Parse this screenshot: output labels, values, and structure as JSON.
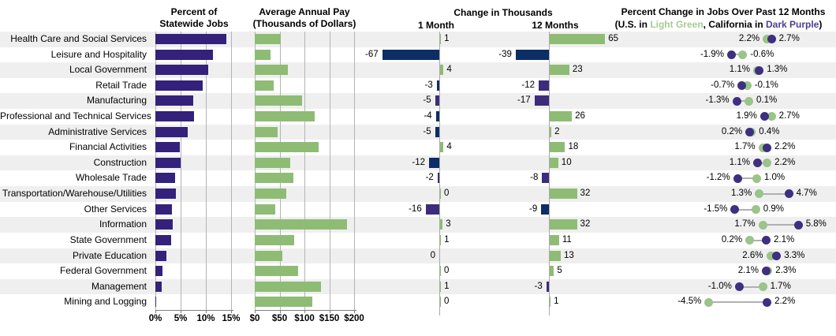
{
  "headers": {
    "panel1_line1": "Percent of",
    "panel1_line2": "Statewide Jobs",
    "panel2_line1": "Average Annual Pay",
    "panel2_line2": "(Thousands of Dollars)",
    "panel3_title": "Change in Thousands",
    "panel3_col1": "1 Month",
    "panel3_col2": "12 Months",
    "panel4_title": "Percent Change in Jobs Over Past 12 Months",
    "panel4_subtitle_prefix": "(U.S. in ",
    "panel4_subtitle_green": "Light Green",
    "panel4_subtitle_mid": ", California in ",
    "panel4_subtitle_purple": "Dark Purple",
    "panel4_subtitle_suffix": ")"
  },
  "colors": {
    "indigo_bar": "#33217B",
    "green_bar": "#8FBC75",
    "navy_bar": "#0C2D66",
    "purple_bar": "#3D2B7C",
    "us_dot": "#9AC489",
    "ca_dot": "#3E2F80",
    "legend_green_text": "#A5CB93",
    "legend_purple_text": "#4B3F94",
    "stripe": "#EFEFEF",
    "gridline": "#B3B3B3",
    "connector": "#B0B0B0"
  },
  "chart_data": [
    {
      "type": "bar",
      "title": "Percent of Statewide Jobs",
      "xlim": [
        0,
        15
      ],
      "tick_labels": [
        "0%",
        "5%",
        "10%",
        "15%"
      ],
      "categories": [
        "Health Care and Social Services",
        "Leisure and Hospitality",
        "Local Government",
        "Retail Trade",
        "Manufacturing",
        "Professional and Technical Services",
        "Administrative Services",
        "Financial Activities",
        "Construction",
        "Wholesale Trade",
        "Transportation/Warehouse/Utilities",
        "Other Services",
        "Information",
        "State Government",
        "Private Education",
        "Federal Government",
        "Management",
        "Mining and Logging"
      ],
      "values": [
        14.0,
        11.4,
        10.4,
        9.4,
        7.5,
        7.7,
        6.4,
        4.8,
        5.0,
        3.9,
        4.1,
        3.3,
        3.4,
        3.2,
        2.2,
        1.4,
        1.3,
        0.1
      ]
    },
    {
      "type": "bar",
      "title": "Average Annual Pay (Thousands of Dollars)",
      "xlim": [
        0,
        200
      ],
      "tick_labels": [
        "$0",
        "$50",
        "$100",
        "$150",
        "$200"
      ],
      "values": [
        53,
        32,
        66,
        38,
        96,
        121,
        46,
        128,
        71,
        78,
        64,
        42,
        186,
        80,
        56,
        87,
        134,
        116
      ]
    },
    {
      "type": "bar",
      "title": "Change in Thousands — 1 Month",
      "values": [
        1,
        -67,
        4,
        -3,
        -5,
        -4,
        -5,
        4,
        -12,
        -2,
        0,
        -16,
        3,
        1,
        0,
        0,
        1,
        0
      ],
      "bar_colors": [
        "green",
        "navy",
        "green",
        "navy",
        "purple",
        "navy",
        "navy",
        "green",
        "navy",
        "purple",
        "green",
        "purple",
        "green",
        "green",
        "none",
        "green",
        "green",
        "green"
      ],
      "label_sides": [
        "right",
        "left",
        "right",
        "left",
        "left",
        "left",
        "left",
        "right",
        "left",
        "left",
        "right",
        "left",
        "right",
        "right",
        "left",
        "right",
        "right",
        "right"
      ]
    },
    {
      "type": "bar",
      "title": "Change in Thousands — 12 Months",
      "values": [
        65,
        -39,
        23,
        -12,
        -17,
        26,
        2,
        18,
        10,
        -8,
        32,
        -9,
        32,
        11,
        13,
        5,
        -3,
        1
      ],
      "bar_colors": [
        "green",
        "navy",
        "green",
        "purple",
        "purple",
        "green",
        "green",
        "green",
        "green",
        "purple",
        "green",
        "navy",
        "green",
        "green",
        "green",
        "green",
        "purple",
        "green"
      ]
    },
    {
      "type": "scatter",
      "title": "Percent Change in Jobs Over Past 12 Months",
      "legend": [
        "U.S. in Light Green",
        "California in Dark Purple"
      ],
      "series": [
        {
          "name": "U.S.",
          "color_key": "us_dot",
          "values": [
            2.2,
            -0.6,
            1.1,
            -0.1,
            0.1,
            2.7,
            0.4,
            1.7,
            2.2,
            1.0,
            1.3,
            0.9,
            1.7,
            0.2,
            2.6,
            2.3,
            1.7,
            -4.5
          ]
        },
        {
          "name": "California",
          "color_key": "ca_dot",
          "values": [
            2.7,
            -1.9,
            1.3,
            -0.7,
            -1.3,
            1.9,
            0.2,
            2.2,
            1.1,
            -1.2,
            4.7,
            -1.5,
            5.8,
            2.1,
            3.3,
            2.1,
            -1.0,
            2.2
          ]
        }
      ]
    }
  ]
}
